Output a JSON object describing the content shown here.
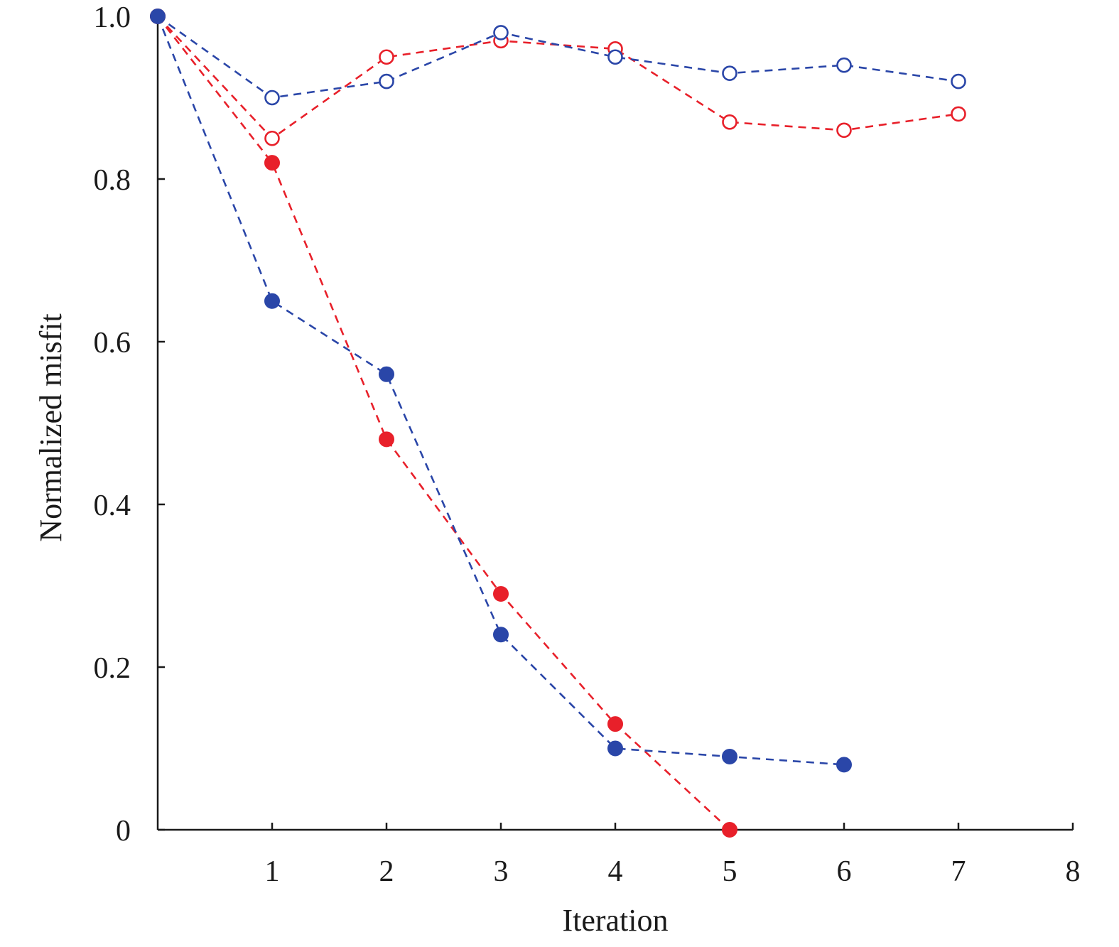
{
  "colors": {
    "red": "#e8202a",
    "blue": "#2a46a8",
    "axis": "#1a1a1a",
    "background": "#ffffff"
  },
  "chart_data": {
    "type": "line",
    "title": "",
    "xlabel": "Iteration",
    "ylabel": "Normalized misfit",
    "xlim": [
      0,
      8
    ],
    "ylim": [
      0,
      1.0
    ],
    "xticks": [
      1,
      2,
      3,
      4,
      5,
      6,
      7,
      8
    ],
    "xtick_labels": [
      "1",
      "2",
      "3",
      "4",
      "5",
      "6",
      "7",
      "8"
    ],
    "yticks": [
      0,
      0.2,
      0.4,
      0.6,
      0.8,
      1.0
    ],
    "ytick_labels": [
      "0",
      "0.2",
      "0.4",
      "0.6",
      "0.8",
      "1.0"
    ],
    "grid": false,
    "legend": "none",
    "line_style": "dashed",
    "series": [
      {
        "color": "red",
        "marker": "open-circle",
        "x": [
          0,
          1,
          2,
          3,
          4,
          5,
          6,
          7
        ],
        "y": [
          1.0,
          0.85,
          0.95,
          0.97,
          0.96,
          0.87,
          0.86,
          0.88
        ]
      },
      {
        "color": "blue",
        "marker": "open-circle",
        "x": [
          0,
          1,
          2,
          3,
          4,
          5,
          6,
          7
        ],
        "y": [
          1.0,
          0.9,
          0.92,
          0.98,
          0.95,
          0.93,
          0.94,
          0.92
        ]
      },
      {
        "color": "red",
        "marker": "filled-circle",
        "x": [
          0,
          1,
          2,
          3,
          4,
          5
        ],
        "y": [
          1.0,
          0.82,
          0.48,
          0.29,
          0.13,
          0.0
        ]
      },
      {
        "color": "blue",
        "marker": "filled-circle",
        "x": [
          0,
          1,
          2,
          3,
          4,
          5,
          6
        ],
        "y": [
          1.0,
          0.65,
          0.56,
          0.24,
          0.1,
          0.09,
          0.08
        ]
      }
    ]
  }
}
